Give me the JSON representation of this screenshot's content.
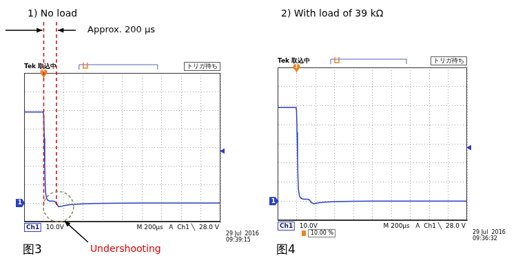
{
  "chart_data": [
    {
      "type": "line",
      "title": "1) No load",
      "figure_label": "图3",
      "x": [
        0,
        50,
        100,
        150,
        195,
        200,
        205,
        210,
        215,
        220,
        230,
        240,
        260,
        280,
        300,
        320,
        340,
        350,
        380,
        400,
        450,
        500,
        600,
        700,
        800,
        1000,
        1200,
        1400,
        1600,
        1800,
        2000
      ],
      "values": [
        49,
        49,
        49,
        49,
        49,
        47,
        35,
        20,
        10,
        5,
        2.5,
        1.5,
        1,
        1,
        1,
        0.5,
        -1,
        -2,
        -1.8,
        -1.5,
        -1,
        -0.7,
        -0.5,
        -0.3,
        -0.2,
        -0.1,
        0,
        0,
        0,
        0,
        0
      ],
      "color": "#2b3fc4",
      "xlim": [
        0,
        2000
      ],
      "xticks": [
        0,
        200,
        400,
        600,
        800,
        1000,
        1200,
        1400,
        1600,
        1800,
        2000
      ],
      "ylim": [
        -10,
        70
      ],
      "yticks": [
        -10,
        0,
        10,
        20,
        30,
        40,
        50,
        60,
        70
      ],
      "grid": true,
      "tick_labels": false,
      "scope": {
        "header": "Tek 取込中",
        "status": "トリガ待ち",
        "channel": "Ch1",
        "volts_per_div": "10.0V",
        "timebase": "M 200μs",
        "trigger": "A  Ch1 ╲  28.0 V",
        "date": "29 Jul  2016",
        "time": "09:39:15",
        "ground_marker": "1",
        "trigger_marker": "T",
        "trigger_x": 200,
        "trigger_level": 28
      },
      "annotations": [
        {
          "text": "Approx. 200 μs",
          "x": [
            200,
            330
          ],
          "color": "#e00000"
        },
        {
          "text": "Undershooting",
          "x": 350,
          "color": "#e00000"
        }
      ]
    },
    {
      "type": "line",
      "title": "2) With load of 39 kΩ",
      "figure_label": "图4",
      "x": [
        0,
        50,
        100,
        150,
        195,
        200,
        205,
        210,
        215,
        220,
        230,
        240,
        260,
        280,
        300,
        320,
        340,
        350,
        380,
        400,
        450,
        500,
        600,
        700,
        800,
        1000,
        1200,
        1400,
        1600,
        1800,
        2000
      ],
      "values": [
        49,
        49,
        49,
        49,
        49,
        47,
        36,
        22,
        12,
        6,
        3,
        1.8,
        1.2,
        1,
        1,
        1,
        0.5,
        -0.5,
        -1.4,
        -1.2,
        -0.8,
        -0.5,
        -0.3,
        -0.2,
        -0.1,
        0,
        0,
        0,
        0,
        0,
        0
      ],
      "color": "#2b3fc4",
      "xlim": [
        0,
        2000
      ],
      "xticks": [
        0,
        200,
        400,
        600,
        800,
        1000,
        1200,
        1400,
        1600,
        1800,
        2000
      ],
      "ylim": [
        -10,
        70
      ],
      "yticks": [
        -10,
        0,
        10,
        20,
        30,
        40,
        50,
        60,
        70
      ],
      "grid": true,
      "tick_labels": false,
      "scope": {
        "header": "Tek 取込中",
        "status": "トリガ待ち",
        "channel": "Ch1",
        "volts_per_div": "10.0V",
        "timebase": "M 200μs",
        "trigger": "A  Ch1 ╲  28.0 V",
        "date": "29 Jul  2016",
        "time": "09:36:32",
        "ground_marker": "1",
        "trigger_marker": "T",
        "trigger_x": 200,
        "trigger_level": 28,
        "readout": "10.00 %"
      }
    }
  ]
}
